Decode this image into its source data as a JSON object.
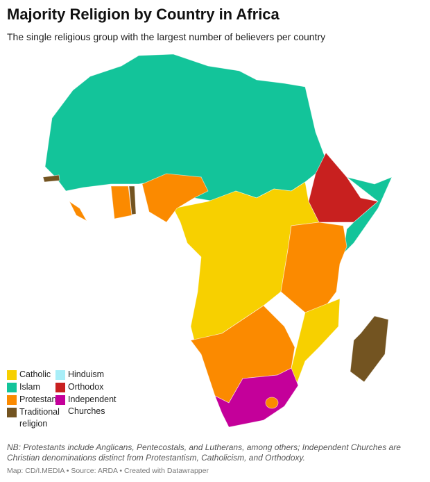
{
  "header": {
    "title": "Majority Religion by Country in Africa",
    "subtitle": "The single religious group with the largest number of believers per country"
  },
  "legend": [
    {
      "label": "Catholic",
      "color": "#f7d000"
    },
    {
      "label": "Hinduism",
      "color": "#a8eef8"
    },
    {
      "label": "Islam",
      "color": "#13c49a"
    },
    {
      "label": "Orthodox",
      "color": "#c8201f"
    },
    {
      "label": "Protestant",
      "color": "#fb8a00"
    },
    {
      "label": "Independent Churches",
      "color": "#c4009a"
    },
    {
      "label": "Traditional religion",
      "color": "#735421"
    }
  ],
  "note": "NB: Protestants include Anglicans, Pentecostals, and Lutherans, among others; Independent Churches are Christian denominations distinct from Protestantism, Catholicism, and Orthodoxy.",
  "footer": "Map: CD/I.MEDIA • Source: ARDA • Created with Datawrapper"
}
